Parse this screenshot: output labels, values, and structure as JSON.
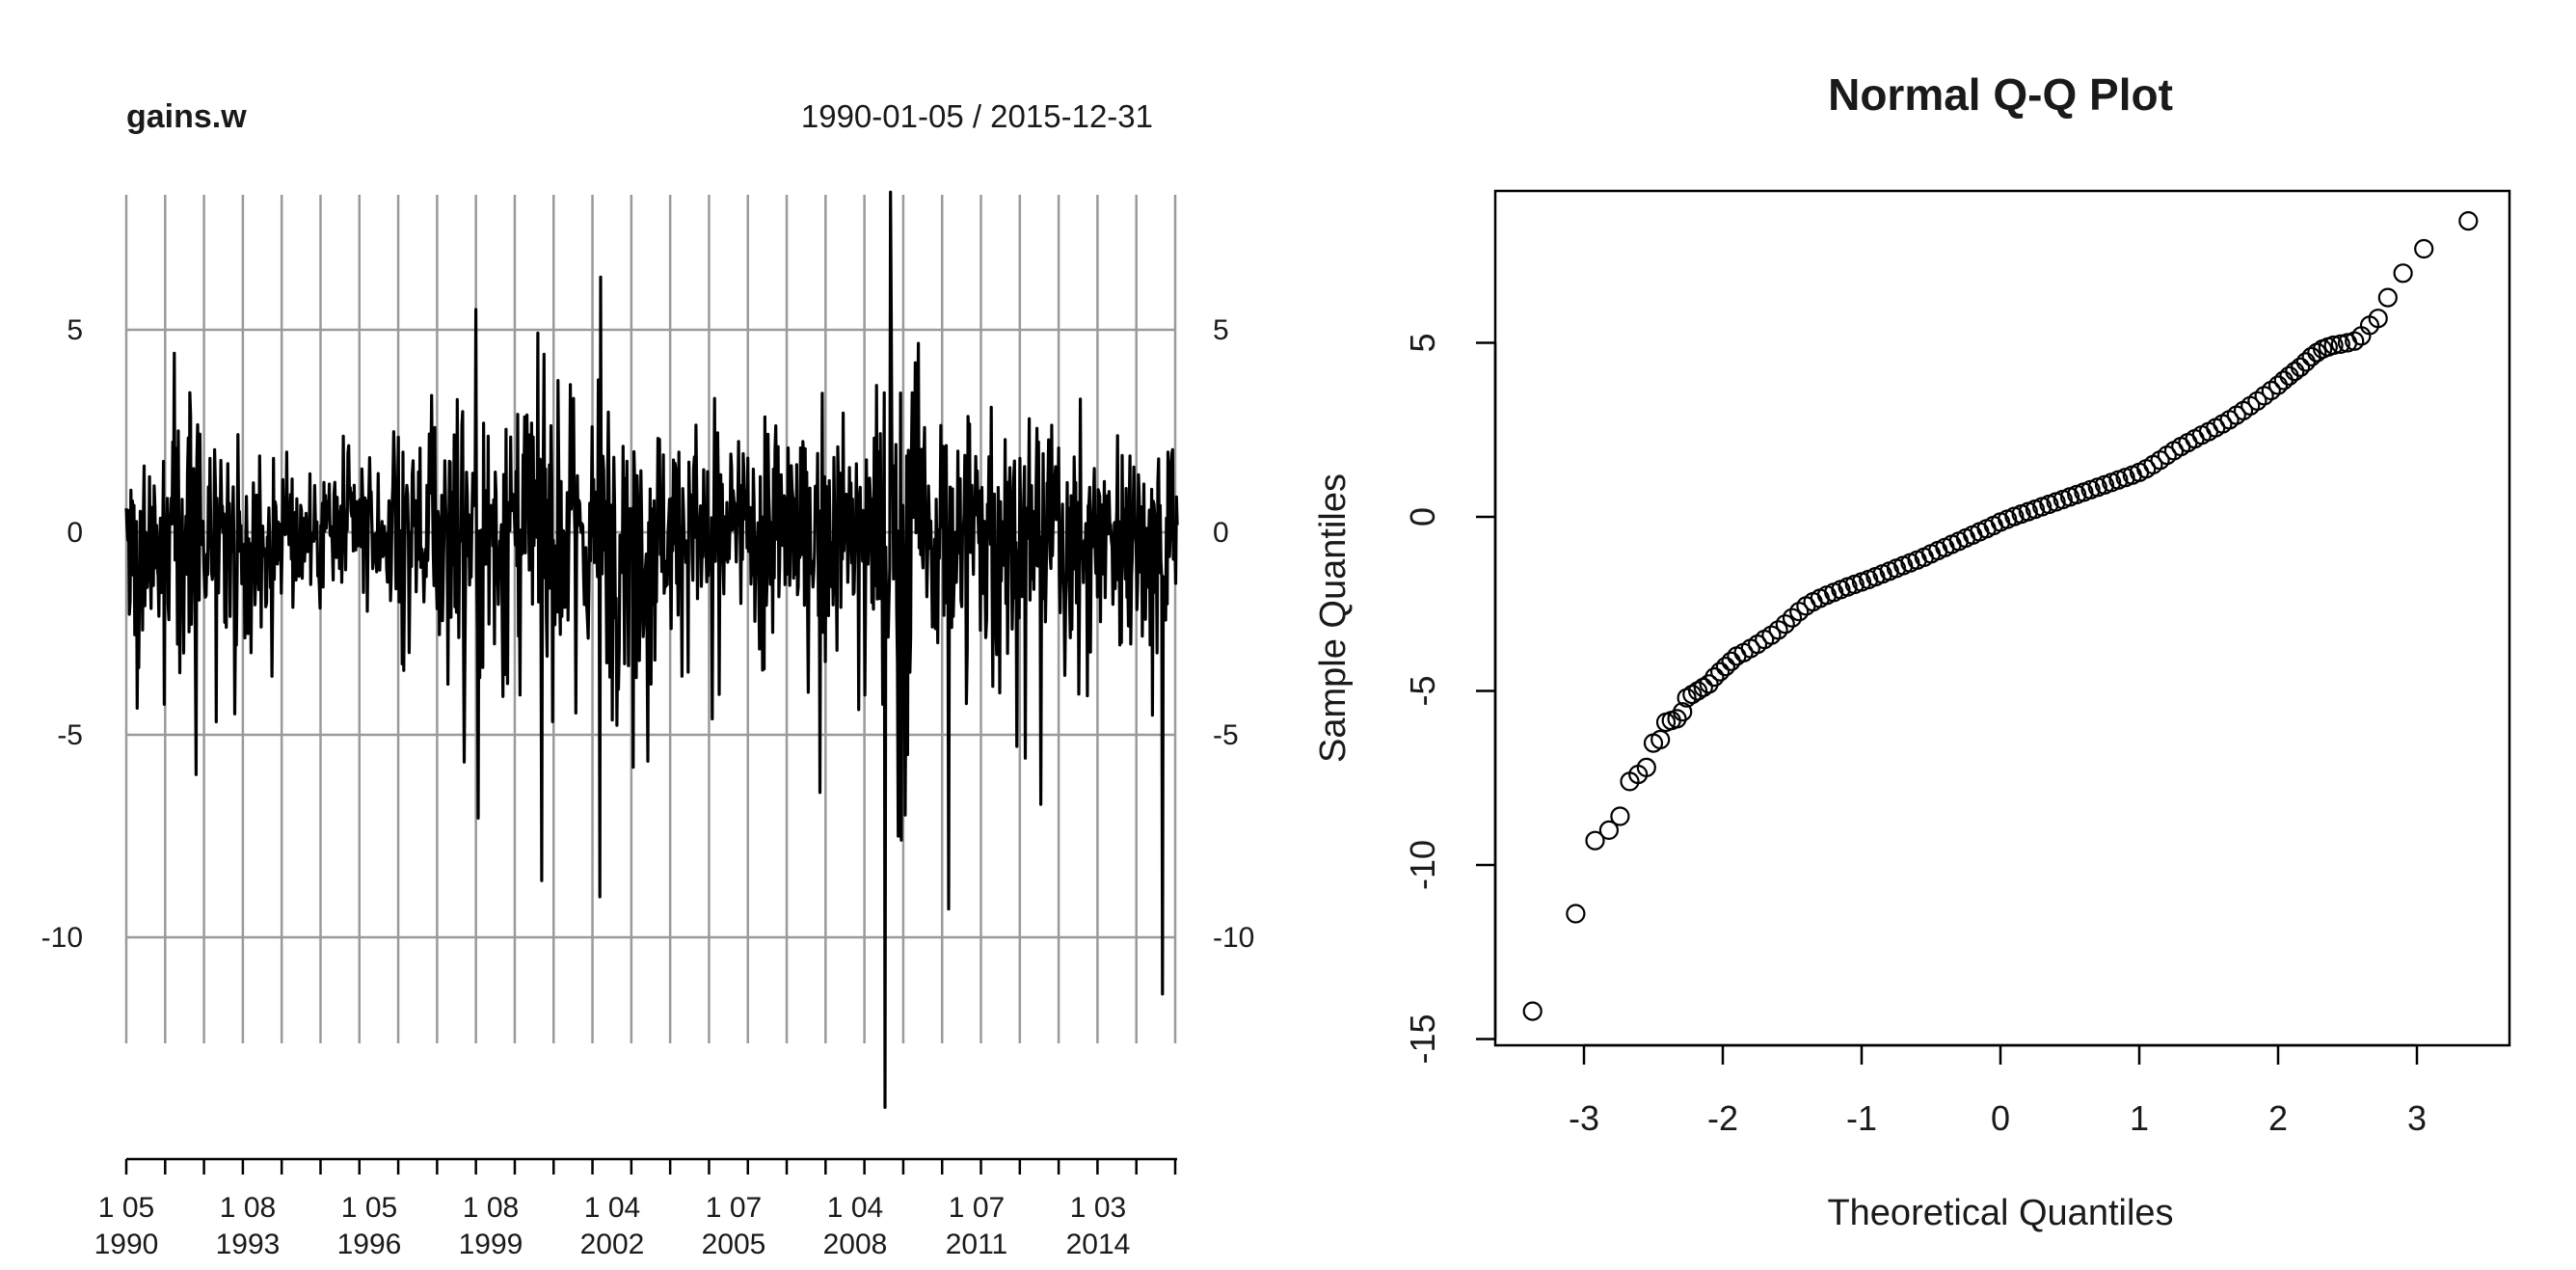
{
  "chart_data": [
    {
      "type": "line",
      "title": "gains.w",
      "subtitle": "1990-01-05 / 2015-12-31",
      "x_range": [
        "1990-01-05",
        "2015-12-31"
      ],
      "ylim": [
        -13.5,
        8.5
      ],
      "y_ticks_left": [
        "5",
        "0",
        "-5",
        "-10"
      ],
      "y_ticks_right": [
        "5",
        "0",
        "-5",
        "-10"
      ],
      "y_tick_values": [
        5,
        0,
        -5,
        -10
      ],
      "x_tick_labels": [
        {
          "line1": "1 05",
          "line2": "1990"
        },
        {
          "line1": "1 08",
          "line2": "1993"
        },
        {
          "line1": "1 05",
          "line2": "1996"
        },
        {
          "line1": "1 08",
          "line2": "1999"
        },
        {
          "line1": "1 04",
          "line2": "2002"
        },
        {
          "line1": "1 07",
          "line2": "2005"
        },
        {
          "line1": "1 04",
          "line2": "2008"
        },
        {
          "line1": "1 07",
          "line2": "2011"
        },
        {
          "line1": "1 03",
          "line2": "2014"
        }
      ],
      "grid": true,
      "line_color": "#000000",
      "grid_color": "#9a9a9a",
      "notable_points": [
        {
          "date": "2008-10-10",
          "value": -14.2
        },
        {
          "date": "2008-11-28",
          "value": 8.4
        },
        {
          "date": "2015-08-21",
          "value": -11.4
        },
        {
          "date": "2001-09-21",
          "value": -9.0
        },
        {
          "date": "2001-09-28",
          "value": 6.3
        },
        {
          "date": "2000-04-14",
          "value": -8.6
        },
        {
          "date": "2009-03-06",
          "value": -7.6
        },
        {
          "date": "2002-07-19",
          "value": -5.8
        },
        {
          "date": "1998-08-28",
          "value": 5.5
        },
        {
          "date": "2010-05-07",
          "value": -9.3
        }
      ]
    },
    {
      "type": "scatter",
      "title": "Normal Q-Q Plot",
      "xlabel": "Theoretical Quantiles",
      "ylabel": "Sample Quantiles",
      "xlim": [
        -3.6,
        3.6
      ],
      "ylim": [
        -15.2,
        9.2
      ],
      "x_ticks": [
        -3,
        -2,
        -1,
        0,
        1,
        2,
        3
      ],
      "y_ticks": [
        -15,
        -10,
        -5,
        0,
        5
      ],
      "marker": "open-circle",
      "points": [
        [
          -3.37,
          -14.2
        ],
        [
          -3.06,
          -11.4
        ],
        [
          -2.92,
          -9.3
        ],
        [
          -2.82,
          -9.0
        ],
        [
          -2.74,
          -8.6
        ],
        [
          -2.67,
          -7.6
        ],
        [
          -2.61,
          -7.4
        ],
        [
          -2.55,
          -7.2
        ],
        [
          -2.5,
          -6.5
        ],
        [
          -2.45,
          -6.4
        ],
        [
          -2.41,
          -5.9
        ],
        [
          -2.37,
          -5.85
        ],
        [
          -2.33,
          -5.8
        ],
        [
          -2.29,
          -5.6
        ],
        [
          -2.26,
          -5.2
        ],
        [
          -2.22,
          -5.1
        ],
        [
          -2.18,
          -5.0
        ],
        [
          -2.14,
          -4.9
        ],
        [
          -2.1,
          -4.8
        ],
        [
          -2.06,
          -4.6
        ],
        [
          -2.02,
          -4.45
        ],
        [
          -1.98,
          -4.3
        ],
        [
          -1.94,
          -4.15
        ],
        [
          -1.9,
          -4.0
        ],
        [
          -1.85,
          -3.9
        ],
        [
          -1.8,
          -3.78
        ],
        [
          -1.75,
          -3.66
        ],
        [
          -1.7,
          -3.52
        ],
        [
          -1.65,
          -3.4
        ],
        [
          -1.6,
          -3.25
        ],
        [
          -1.55,
          -3.08
        ],
        [
          -1.5,
          -2.9
        ],
        [
          -1.45,
          -2.72
        ],
        [
          -1.4,
          -2.56
        ],
        [
          -1.35,
          -2.44
        ],
        [
          -1.3,
          -2.34
        ],
        [
          -1.25,
          -2.25
        ],
        [
          -1.2,
          -2.17
        ],
        [
          -1.15,
          -2.09
        ],
        [
          -1.1,
          -2.01
        ],
        [
          -1.05,
          -1.94
        ],
        [
          -1.0,
          -1.87
        ],
        [
          -0.95,
          -1.8
        ],
        [
          -0.9,
          -1.72
        ],
        [
          -0.85,
          -1.64
        ],
        [
          -0.8,
          -1.56
        ],
        [
          -0.75,
          -1.48
        ],
        [
          -0.7,
          -1.4
        ],
        [
          -0.65,
          -1.32
        ],
        [
          -0.6,
          -1.24
        ],
        [
          -0.55,
          -1.16
        ],
        [
          -0.5,
          -1.06
        ],
        [
          -0.45,
          -0.97
        ],
        [
          -0.4,
          -0.88
        ],
        [
          -0.35,
          -0.79
        ],
        [
          -0.3,
          -0.7
        ],
        [
          -0.25,
          -0.61
        ],
        [
          -0.2,
          -0.52
        ],
        [
          -0.15,
          -0.43
        ],
        [
          -0.1,
          -0.34
        ],
        [
          -0.05,
          -0.25
        ],
        [
          0.0,
          -0.15
        ],
        [
          0.05,
          -0.07
        ],
        [
          0.1,
          0.01
        ],
        [
          0.15,
          0.08
        ],
        [
          0.2,
          0.15
        ],
        [
          0.25,
          0.22
        ],
        [
          0.3,
          0.29
        ],
        [
          0.35,
          0.36
        ],
        [
          0.4,
          0.43
        ],
        [
          0.45,
          0.5
        ],
        [
          0.5,
          0.57
        ],
        [
          0.55,
          0.64
        ],
        [
          0.6,
          0.71
        ],
        [
          0.65,
          0.78
        ],
        [
          0.7,
          0.85
        ],
        [
          0.75,
          0.92
        ],
        [
          0.8,
          0.99
        ],
        [
          0.85,
          1.06
        ],
        [
          0.9,
          1.13
        ],
        [
          0.95,
          1.2
        ],
        [
          1.0,
          1.28
        ],
        [
          1.05,
          1.38
        ],
        [
          1.1,
          1.5
        ],
        [
          1.15,
          1.63
        ],
        [
          1.2,
          1.77
        ],
        [
          1.25,
          1.9
        ],
        [
          1.3,
          2.02
        ],
        [
          1.35,
          2.13
        ],
        [
          1.4,
          2.24
        ],
        [
          1.45,
          2.35
        ],
        [
          1.5,
          2.45
        ],
        [
          1.55,
          2.56
        ],
        [
          1.6,
          2.67
        ],
        [
          1.65,
          2.79
        ],
        [
          1.7,
          2.92
        ],
        [
          1.75,
          3.05
        ],
        [
          1.8,
          3.19
        ],
        [
          1.85,
          3.33
        ],
        [
          1.9,
          3.48
        ],
        [
          1.95,
          3.63
        ],
        [
          2.0,
          3.78
        ],
        [
          2.04,
          3.92
        ],
        [
          2.08,
          4.05
        ],
        [
          2.12,
          4.18
        ],
        [
          2.16,
          4.3
        ],
        [
          2.2,
          4.45
        ],
        [
          2.24,
          4.6
        ],
        [
          2.28,
          4.72
        ],
        [
          2.32,
          4.82
        ],
        [
          2.36,
          4.88
        ],
        [
          2.4,
          4.93
        ],
        [
          2.45,
          4.96
        ],
        [
          2.5,
          5.0
        ],
        [
          2.55,
          5.05
        ],
        [
          2.6,
          5.2
        ],
        [
          2.66,
          5.5
        ],
        [
          2.72,
          5.7
        ],
        [
          2.79,
          6.3
        ],
        [
          2.9,
          7.0
        ],
        [
          3.05,
          7.7
        ],
        [
          3.37,
          8.5
        ]
      ]
    }
  ]
}
